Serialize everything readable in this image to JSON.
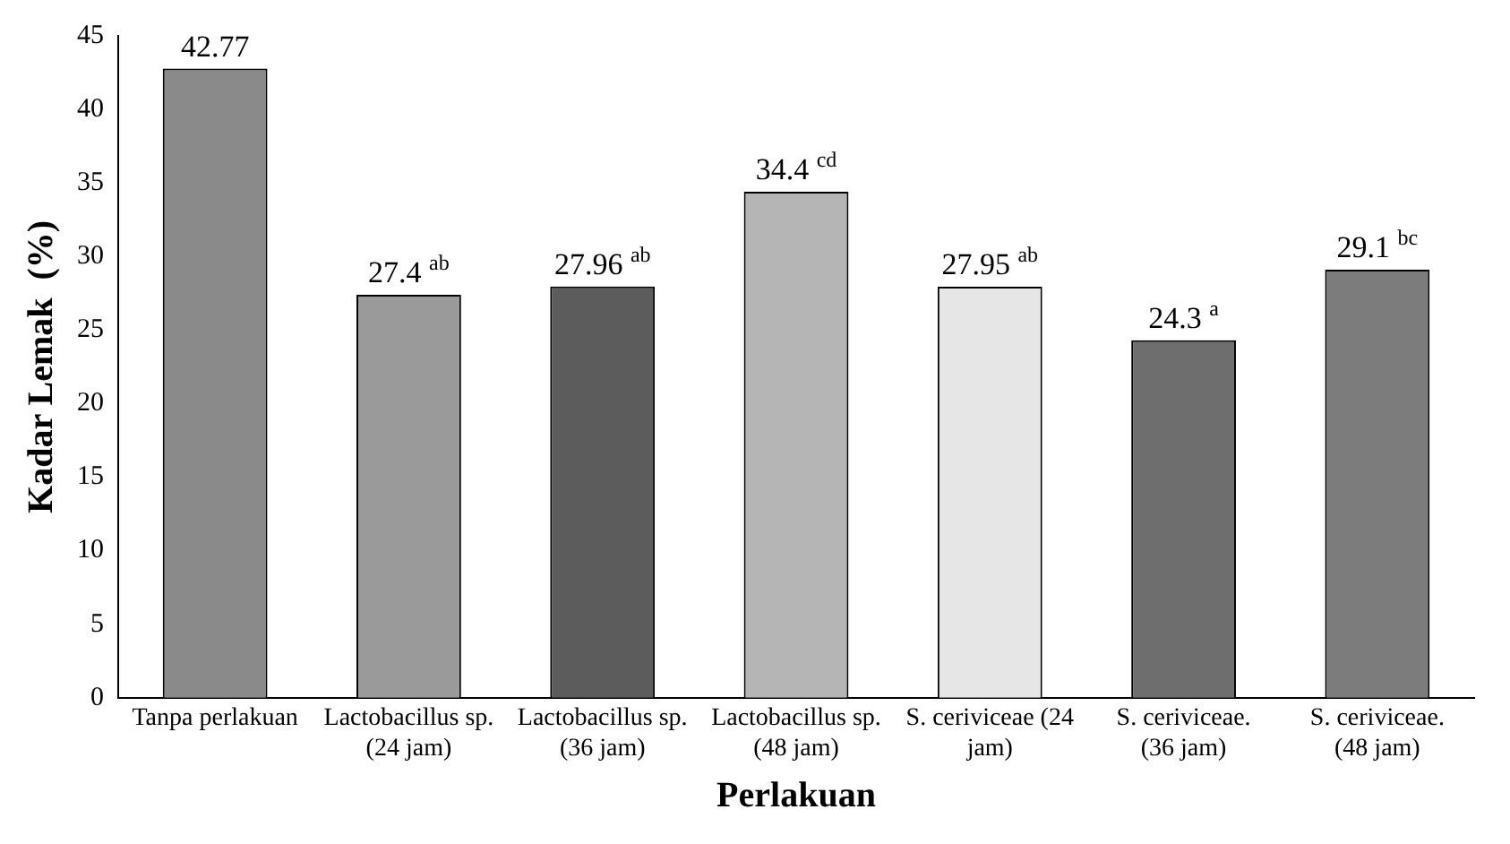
{
  "chart_data": {
    "type": "bar",
    "xlabel": "Perlakuan",
    "ylabel": "Kadar Lemak  (%)",
    "categories": [
      "Tanpa perlakuan",
      "Lactobacillus sp. (24 jam)",
      "Lactobacillus sp. (36 jam)",
      "Lactobacillus sp. (48 jam)",
      "S. ceriviceae (24 jam)",
      "S. ceriviceae. (36 jam)",
      "S. ceriviceae. (48 jam)"
    ],
    "values": [
      42.77,
      27.4,
      27.96,
      34.4,
      27.95,
      24.3,
      29.1
    ],
    "colors": [
      "#8a8a8a",
      "#9a9a9a",
      "#5c5c5c",
      "#b5b5b5",
      "#e6e6e6",
      "#6e6e6e",
      "#7c7c7c"
    ],
    "value_labels": [
      "42.77",
      "27.4 $^{ab}$",
      "27.96 $^{ab}$",
      "34.4 $^{cd}$",
      "27.95 $^{ab}$",
      "24.3 $^{a}$",
      "29.1 $^{bc}$"
    ],
    "ylim": [
      0,
      45
    ],
    "yticks": [
      0,
      5,
      10,
      15,
      20,
      25,
      30,
      35,
      40,
      45
    ],
    "grid": false,
    "legend": false
  }
}
